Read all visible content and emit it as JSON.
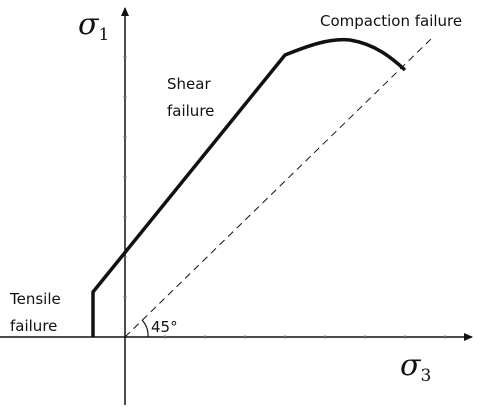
{
  "axes": {
    "y_label": {
      "symbol": "σ",
      "subscript": "1"
    },
    "x_label": {
      "symbol": "σ",
      "subscript": "3"
    }
  },
  "regions": {
    "compaction": "Compaction failure",
    "shear": [
      "Shear",
      "failure"
    ],
    "tensile": [
      "Tensile",
      "failure"
    ]
  },
  "angle": "45°"
}
